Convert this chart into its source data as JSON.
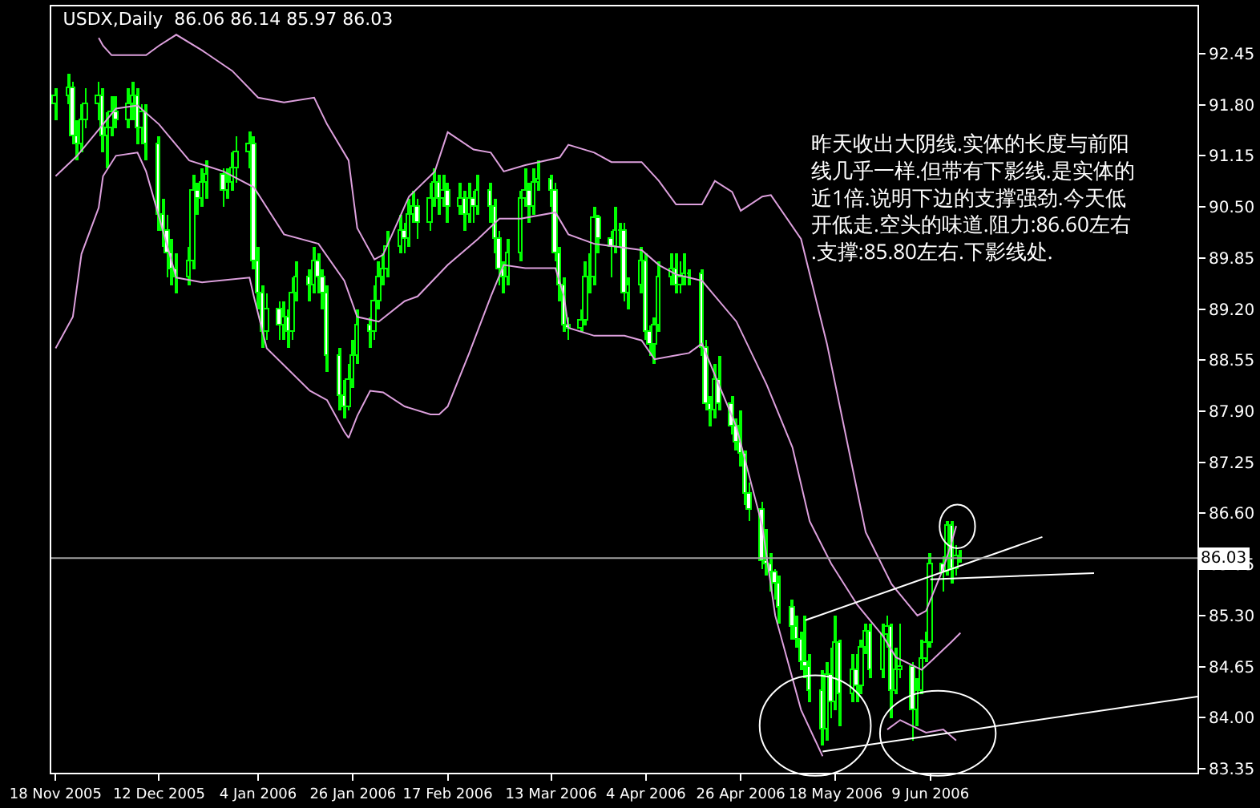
{
  "chart_data": {
    "type": "candlestick",
    "title": "USDX,Daily  86.06 86.14 85.97 86.03",
    "annotations": [
      "昨天收出大阴线.实体的长度与前阳线几乎一样.但带有下影线.是实体的近1倍.说明下边的支撑强劲.今天低开低走.空头的味道.阻力:86.60左右.支撑:85.80左右.下影线处."
    ],
    "series": [
      {
        "color": "#00ff00",
        "x": [
          "2005-11-18",
          "2005-11-21",
          "2005-11-22",
          "2005-11-23",
          "2005-11-24",
          "2005-11-25",
          "2005-11-28",
          "2005-11-29",
          "2005-11-30",
          "2005-12-01",
          "2005-12-02",
          "2005-12-05",
          "2005-12-06",
          "2005-12-07",
          "2005-12-08",
          "2005-12-09",
          "2005-12-12",
          "2005-12-13",
          "2005-12-14",
          "2005-12-15",
          "2005-12-16",
          "2005-12-19",
          "2005-12-20",
          "2005-12-21",
          "2005-12-22",
          "2005-12-23",
          "2005-12-27",
          "2005-12-28",
          "2005-12-29",
          "2005-12-30",
          "2006-01-02",
          "2006-01-03",
          "2006-01-04",
          "2006-01-05",
          "2006-01-06",
          "2006-01-09",
          "2006-01-10",
          "2006-01-11",
          "2006-01-12",
          "2006-01-13",
          "2006-01-16",
          "2006-01-17",
          "2006-01-18",
          "2006-01-19",
          "2006-01-20",
          "2006-01-23",
          "2006-01-24",
          "2006-01-25",
          "2006-01-26",
          "2006-01-27",
          "2006-01-30",
          "2006-01-31",
          "2006-02-01",
          "2006-02-02",
          "2006-02-03",
          "2006-02-06",
          "2006-02-07",
          "2006-02-08",
          "2006-02-09",
          "2006-02-10",
          "2006-02-13",
          "2006-02-14",
          "2006-02-15",
          "2006-02-16",
          "2006-02-17",
          "2006-02-20",
          "2006-02-21",
          "2006-02-22",
          "2006-02-23",
          "2006-02-24",
          "2006-02-27",
          "2006-02-28",
          "2006-03-01",
          "2006-03-02",
          "2006-03-03",
          "2006-03-06",
          "2006-03-07",
          "2006-03-08",
          "2006-03-09",
          "2006-03-10",
          "2006-03-13",
          "2006-03-14",
          "2006-03-15",
          "2006-03-16",
          "2006-03-17",
          "2006-03-20",
          "2006-03-21",
          "2006-03-22",
          "2006-03-23",
          "2006-03-24",
          "2006-03-27",
          "2006-03-28",
          "2006-03-29",
          "2006-03-30",
          "2006-03-31",
          "2006-04-03",
          "2006-04-04",
          "2006-04-05",
          "2006-04-06",
          "2006-04-07",
          "2006-04-10",
          "2006-04-11",
          "2006-04-12",
          "2006-04-13",
          "2006-04-14",
          "2006-04-17",
          "2006-04-18",
          "2006-04-19",
          "2006-04-20",
          "2006-04-21",
          "2006-04-24",
          "2006-04-25",
          "2006-04-26",
          "2006-04-27",
          "2006-04-28",
          "2006-05-01",
          "2006-05-02",
          "2006-05-03",
          "2006-05-04",
          "2006-05-05",
          "2006-05-08",
          "2006-05-09",
          "2006-05-10",
          "2006-05-11",
          "2006-05-12",
          "2006-05-15",
          "2006-05-16",
          "2006-05-17",
          "2006-05-18",
          "2006-05-19",
          "2006-05-22",
          "2006-05-23",
          "2006-05-24",
          "2006-05-25",
          "2006-05-26",
          "2006-05-29",
          "2006-05-30",
          "2006-05-31",
          "2006-06-01",
          "2006-06-02",
          "2006-06-05",
          "2006-06-06",
          "2006-06-07",
          "2006-06-08",
          "2006-06-09",
          "2006-06-12",
          "2006-06-13",
          "2006-06-14",
          "2006-06-15",
          "2006-06-16"
        ],
        "ohlc": [
          [
            91.8,
            92.0,
            91.6,
            91.9
          ],
          [
            91.9,
            92.2,
            91.8,
            92.0
          ],
          [
            92.0,
            92.1,
            91.3,
            91.4
          ],
          [
            91.4,
            91.6,
            91.1,
            91.3
          ],
          [
            91.3,
            91.8,
            91.2,
            91.6
          ],
          [
            91.6,
            92.0,
            91.5,
            91.8
          ],
          [
            91.8,
            92.1,
            91.6,
            91.9
          ],
          [
            91.9,
            92.0,
            91.2,
            91.4
          ],
          [
            91.4,
            91.7,
            91.0,
            91.5
          ],
          [
            91.5,
            91.9,
            91.4,
            91.7
          ],
          [
            91.7,
            91.9,
            91.5,
            91.6
          ],
          [
            91.6,
            92.0,
            91.5,
            91.8
          ],
          [
            91.8,
            92.1,
            91.6,
            91.9
          ],
          [
            91.9,
            92.0,
            91.3,
            91.5
          ],
          [
            91.5,
            91.8,
            91.3,
            91.7
          ],
          [
            91.7,
            91.8,
            91.1,
            91.3
          ],
          [
            91.3,
            91.4,
            90.2,
            90.4
          ],
          [
            90.4,
            90.6,
            90.0,
            90.2
          ],
          [
            90.2,
            90.4,
            89.6,
            89.9
          ],
          [
            89.9,
            90.1,
            89.5,
            89.7
          ],
          [
            89.7,
            89.9,
            89.4,
            89.6
          ],
          [
            89.6,
            90.0,
            89.5,
            89.8
          ],
          [
            89.8,
            90.9,
            89.7,
            90.7
          ],
          [
            90.7,
            90.8,
            90.4,
            90.6
          ],
          [
            90.6,
            91.0,
            90.5,
            90.8
          ],
          [
            90.8,
            91.1,
            90.6,
            90.9
          ],
          [
            90.9,
            91.0,
            90.5,
            90.7
          ],
          [
            90.7,
            91.0,
            90.6,
            90.8
          ],
          [
            90.8,
            91.2,
            90.7,
            91.0
          ],
          [
            91.0,
            91.4,
            90.8,
            91.2
          ],
          [
            91.2,
            91.45,
            91.0,
            91.3
          ],
          [
            91.3,
            91.4,
            89.7,
            89.8
          ],
          [
            89.8,
            90.0,
            89.2,
            89.4
          ],
          [
            89.4,
            89.5,
            88.7,
            88.9
          ],
          [
            88.9,
            89.4,
            88.8,
            89.2
          ],
          [
            89.2,
            89.3,
            88.8,
            89.0
          ],
          [
            89.0,
            89.3,
            88.8,
            89.1
          ],
          [
            89.1,
            89.2,
            88.7,
            88.9
          ],
          [
            88.9,
            89.6,
            88.8,
            89.4
          ],
          [
            89.4,
            89.8,
            89.3,
            89.6
          ],
          [
            89.6,
            89.7,
            89.3,
            89.5
          ],
          [
            89.5,
            90.0,
            89.4,
            89.8
          ],
          [
            89.8,
            89.9,
            89.4,
            89.6
          ],
          [
            89.6,
            89.7,
            89.2,
            89.4
          ],
          [
            89.4,
            89.5,
            88.4,
            88.6
          ],
          [
            88.6,
            88.7,
            87.9,
            88.1
          ],
          [
            88.1,
            88.3,
            87.8,
            87.95
          ],
          [
            87.95,
            88.5,
            87.9,
            88.3
          ],
          [
            88.3,
            88.8,
            88.2,
            88.6
          ],
          [
            88.6,
            89.2,
            88.5,
            89.0
          ],
          [
            89.0,
            89.1,
            88.7,
            88.9
          ],
          [
            88.9,
            89.5,
            88.8,
            89.3
          ],
          [
            89.3,
            89.8,
            89.2,
            89.6
          ],
          [
            89.6,
            89.9,
            89.5,
            89.7
          ],
          [
            89.7,
            90.2,
            89.6,
            90.0
          ],
          [
            90.0,
            90.4,
            89.9,
            90.2
          ],
          [
            90.2,
            90.3,
            89.9,
            90.1
          ],
          [
            90.1,
            90.6,
            90.0,
            90.4
          ],
          [
            90.4,
            90.7,
            90.3,
            90.5
          ],
          [
            90.5,
            90.6,
            90.1,
            90.3
          ],
          [
            90.3,
            90.8,
            90.2,
            90.6
          ],
          [
            90.6,
            91.0,
            90.5,
            90.8
          ],
          [
            90.8,
            90.9,
            90.4,
            90.6
          ],
          [
            90.6,
            90.9,
            90.5,
            90.7
          ],
          [
            90.7,
            90.8,
            90.3,
            90.5
          ],
          [
            90.5,
            90.8,
            90.4,
            90.6
          ],
          [
            90.6,
            90.7,
            90.2,
            90.4
          ],
          [
            90.4,
            90.8,
            90.3,
            90.6
          ],
          [
            90.6,
            90.7,
            90.3,
            90.5
          ],
          [
            90.5,
            90.9,
            90.4,
            90.7
          ],
          [
            90.7,
            90.8,
            90.3,
            90.5
          ],
          [
            90.5,
            90.6,
            89.9,
            90.1
          ],
          [
            90.1,
            90.2,
            89.5,
            89.7
          ],
          [
            89.7,
            89.8,
            89.4,
            89.6
          ],
          [
            89.6,
            90.1,
            89.5,
            89.9
          ],
          [
            89.9,
            90.7,
            89.8,
            90.6
          ],
          [
            90.6,
            91.0,
            90.5,
            90.7
          ],
          [
            90.7,
            90.8,
            90.3,
            90.5
          ],
          [
            90.5,
            91.0,
            90.4,
            90.8
          ],
          [
            90.8,
            91.1,
            90.7,
            90.85
          ],
          [
            90.85,
            90.9,
            90.5,
            90.7
          ],
          [
            90.7,
            90.8,
            89.8,
            89.9
          ],
          [
            89.9,
            90.0,
            89.3,
            89.5
          ],
          [
            89.5,
            89.6,
            88.9,
            89.0
          ],
          [
            89.0,
            89.1,
            88.8,
            88.95
          ],
          [
            88.95,
            89.2,
            88.9,
            89.05
          ],
          [
            89.05,
            89.8,
            89.0,
            89.6
          ],
          [
            89.6,
            89.9,
            89.4,
            89.6
          ],
          [
            89.6,
            90.5,
            89.5,
            90.35
          ],
          [
            90.35,
            90.4,
            89.9,
            90.1
          ],
          [
            90.1,
            90.2,
            89.6,
            90.0
          ],
          [
            90.0,
            90.5,
            89.9,
            90.2
          ],
          [
            90.2,
            90.3,
            90.0,
            90.2
          ],
          [
            90.2,
            90.3,
            89.3,
            89.4
          ],
          [
            89.4,
            89.6,
            89.2,
            89.5
          ],
          [
            89.5,
            90.0,
            89.4,
            89.8
          ],
          [
            89.8,
            89.9,
            88.8,
            88.9
          ],
          [
            88.9,
            89.0,
            88.6,
            88.75
          ],
          [
            88.75,
            89.1,
            88.5,
            89.0
          ],
          [
            89.0,
            89.8,
            88.9,
            89.6
          ],
          [
            89.6,
            89.9,
            89.5,
            89.7
          ],
          [
            89.7,
            89.9,
            89.4,
            89.5
          ],
          [
            89.5,
            89.8,
            89.4,
            89.6
          ],
          [
            89.6,
            89.9,
            89.5,
            89.65
          ],
          [
            89.65,
            89.7,
            89.5,
            89.65
          ],
          [
            89.65,
            89.7,
            88.6,
            88.7
          ],
          [
            88.7,
            88.8,
            87.9,
            88.0
          ],
          [
            88.0,
            88.1,
            87.7,
            87.9
          ],
          [
            87.9,
            88.5,
            87.8,
            88.3
          ],
          [
            88.3,
            88.6,
            87.9,
            88.0
          ],
          [
            88.0,
            88.1,
            87.6,
            87.7
          ],
          [
            87.7,
            87.8,
            87.4,
            87.5
          ],
          [
            87.5,
            87.9,
            87.2,
            87.35
          ],
          [
            87.35,
            87.4,
            86.7,
            86.85
          ],
          [
            86.85,
            87.0,
            86.5,
            86.65
          ],
          [
            86.65,
            86.75,
            85.9,
            86.0
          ],
          [
            86.0,
            86.4,
            85.8,
            85.95
          ],
          [
            85.95,
            86.1,
            85.6,
            85.85
          ],
          [
            85.85,
            85.9,
            85.5,
            85.7
          ],
          [
            85.7,
            85.8,
            85.2,
            85.4
          ],
          [
            85.4,
            85.5,
            85.0,
            85.15
          ],
          [
            85.15,
            85.3,
            84.9,
            85.0
          ],
          [
            85.0,
            85.1,
            84.6,
            84.7
          ],
          [
            84.7,
            85.3,
            84.5,
            84.65
          ],
          [
            84.65,
            84.8,
            84.2,
            84.35
          ],
          [
            84.35,
            84.6,
            83.65,
            83.85
          ],
          [
            83.85,
            84.7,
            83.7,
            84.55
          ],
          [
            84.55,
            84.9,
            84.0,
            84.2
          ],
          [
            84.2,
            85.3,
            84.1,
            84.95
          ],
          [
            84.95,
            85.0,
            83.9,
            84.3
          ],
          [
            84.3,
            84.8,
            84.2,
            84.6
          ],
          [
            84.6,
            84.8,
            84.2,
            84.4
          ],
          [
            84.4,
            85.0,
            84.3,
            84.9
          ],
          [
            84.9,
            85.2,
            84.8,
            85.1
          ],
          [
            85.1,
            85.2,
            84.5,
            84.6
          ],
          [
            84.6,
            85.2,
            84.5,
            85.05
          ],
          [
            85.05,
            85.3,
            84.9,
            85.15
          ],
          [
            85.15,
            85.2,
            84.0,
            84.35
          ],
          [
            84.35,
            84.9,
            84.3,
            84.6
          ],
          [
            84.6,
            85.2,
            84.5,
            84.65
          ],
          [
            84.65,
            84.7,
            83.7,
            84.1
          ],
          [
            84.1,
            84.5,
            83.9,
            84.35
          ],
          [
            84.35,
            85.0,
            84.3,
            84.75
          ],
          [
            84.75,
            85.1,
            84.7,
            84.95
          ],
          [
            84.95,
            86.1,
            84.9,
            85.95
          ],
          [
            85.95,
            86.05,
            85.6,
            85.85
          ],
          [
            85.85,
            86.5,
            85.8,
            86.45
          ],
          [
            86.45,
            86.5,
            85.7,
            85.9
          ],
          [
            85.9,
            86.2,
            85.8,
            86.06
          ],
          [
            86.06,
            86.14,
            85.97,
            86.03
          ]
        ]
      },
      {
        "type": "line",
        "color": "#dda0dd",
        "x": [
          "2005-11-28",
          "2005-11-29",
          "2005-12-01",
          "2005-12-09",
          "2005-12-12",
          "2005-12-16",
          "2005-12-22",
          "2005-12-29",
          "2006-01-04",
          "2006-01-10",
          "2006-01-17",
          "2006-01-20",
          "2006-01-25",
          "2006-01-27",
          "2006-01-31",
          "2006-02-02",
          "2006-02-08",
          "2006-02-14",
          "2006-02-17",
          "2006-02-23",
          "2006-02-27",
          "2006-03-02",
          "2006-03-07",
          "2006-03-15",
          "2006-03-17",
          "2006-03-23",
          "2006-03-27",
          "2006-04-03",
          "2006-04-07",
          "2006-04-11",
          "2006-04-17",
          "2006-04-20",
          "2006-04-24",
          "2006-04-26",
          "2006-05-01",
          "2006-05-03",
          "2006-05-10",
          "2006-05-16",
          "2006-05-25",
          "2006-05-31",
          "2006-06-06",
          "2006-06-08",
          "2006-06-12",
          "2006-06-14",
          "2006-06-15"
        ],
        "values": [
          92.65,
          92.55,
          92.43,
          92.43,
          92.55,
          92.69,
          92.49,
          92.23,
          91.89,
          91.83,
          91.89,
          91.55,
          91.09,
          90.23,
          89.83,
          89.89,
          90.63,
          90.95,
          91.45,
          91.23,
          91.19,
          90.95,
          91.03,
          91.13,
          91.29,
          91.19,
          91.07,
          91.07,
          90.83,
          90.53,
          90.53,
          90.83,
          90.69,
          90.45,
          90.63,
          90.65,
          90.09,
          88.76,
          86.36,
          85.7,
          85.3,
          85.36,
          85.9,
          86.24,
          86.44
        ]
      },
      {
        "type": "line",
        "color": "#dda0dd",
        "x": [
          "2005-11-18",
          "2005-11-23",
          "2005-11-29",
          "2005-12-02",
          "2005-12-07",
          "2005-12-12",
          "2005-12-19",
          "2005-12-27",
          "2006-01-03",
          "2006-01-10",
          "2006-01-18",
          "2006-01-24",
          "2006-01-27",
          "2006-02-01",
          "2006-02-07",
          "2006-02-10",
          "2006-02-17",
          "2006-02-24",
          "2006-03-01",
          "2006-03-06",
          "2006-03-14",
          "2006-03-17",
          "2006-03-23",
          "2006-04-03",
          "2006-04-07",
          "2006-04-11",
          "2006-04-17",
          "2006-04-25",
          "2006-05-02",
          "2006-05-08",
          "2006-05-12",
          "2006-05-17",
          "2006-05-23",
          "2006-05-29",
          "2006-06-01",
          "2006-06-07",
          "2006-06-09",
          "2006-06-14",
          "2006-06-16"
        ],
        "values": [
          90.89,
          91.15,
          91.55,
          91.75,
          91.79,
          91.55,
          91.09,
          90.95,
          90.75,
          90.15,
          90.03,
          89.56,
          89.1,
          89.04,
          89.3,
          89.36,
          89.76,
          90.09,
          90.35,
          90.35,
          90.43,
          90.15,
          90.03,
          89.95,
          89.76,
          89.64,
          89.56,
          89.04,
          88.24,
          87.44,
          86.5,
          85.96,
          85.44,
          85.04,
          84.77,
          84.61,
          84.71,
          84.97,
          85.08
        ]
      },
      {
        "type": "line",
        "color": "#dda0dd",
        "x": [
          "2005-11-18",
          "2005-11-22",
          "2005-11-24",
          "2005-11-28",
          "2005-11-29",
          "2005-12-02",
          "2005-12-07",
          "2005-12-09",
          "2005-12-16",
          "2005-12-22",
          "2006-01-02",
          "2006-01-03",
          "2006-01-06",
          "2006-01-16",
          "2006-01-20",
          "2006-01-24",
          "2006-01-25",
          "2006-01-27",
          "2006-01-30",
          "2006-02-02",
          "2006-02-07",
          "2006-02-13",
          "2006-02-15",
          "2006-02-17",
          "2006-02-22",
          "2006-02-27",
          "2006-03-02",
          "2006-03-07",
          "2006-03-14",
          "2006-03-16",
          "2006-03-17",
          "2006-03-23",
          "2006-03-30",
          "2006-04-03",
          "2006-04-06",
          "2006-04-10",
          "2006-04-14",
          "2006-04-17",
          "2006-04-20",
          "2006-04-25",
          "2006-05-01",
          "2006-05-04",
          "2006-05-10",
          "2006-05-15",
          "2006-05-18",
          "2006-05-30",
          "2006-06-02",
          "2006-06-08",
          "2006-06-12",
          "2006-06-15"
        ],
        "values": [
          88.7,
          89.1,
          89.9,
          90.49,
          90.89,
          91.15,
          91.19,
          90.95,
          89.6,
          89.54,
          89.6,
          89.36,
          88.7,
          88.16,
          88.04,
          87.64,
          87.56,
          87.84,
          88.16,
          88.14,
          87.96,
          87.86,
          87.86,
          87.96,
          88.64,
          89.36,
          89.76,
          89.72,
          89.72,
          89.36,
          88.96,
          88.86,
          88.86,
          88.8,
          88.56,
          88.6,
          88.64,
          88.76,
          88.36,
          87.7,
          86.44,
          85.3,
          84.1,
          83.51,
          null,
          83.85,
          83.97,
          83.81,
          83.85,
          83.71
        ]
      },
      {
        "type": "line",
        "color": "#ffffff",
        "x": [
          "2006-05-11",
          "2006-07-05"
        ],
        "values": [
          85.24,
          86.3
        ]
      },
      {
        "type": "line",
        "color": "#ffffff",
        "x": [
          "2006-06-09",
          "2006-07-17"
        ],
        "values": [
          85.76,
          85.84
        ]
      },
      {
        "type": "line",
        "color": "#ffffff",
        "x": [
          "2006-05-15",
          "2006-08-10"
        ],
        "values": [
          83.57,
          84.27
        ]
      }
    ],
    "xlim": [
      "2005-11-17",
      "2006-08-10"
    ],
    "xticks": [
      {
        "value": "2005-11-18",
        "label": "18 Nov 2005"
      },
      {
        "value": "2005-12-12",
        "label": "12 Dec 2005"
      },
      {
        "value": "2006-01-04",
        "label": "4 Jan 2006"
      },
      {
        "value": "2006-01-26",
        "label": "26 Jan 2006"
      },
      {
        "value": "2006-02-17",
        "label": "17 Feb 2006"
      },
      {
        "value": "2006-03-13",
        "label": "13 Mar 2006"
      },
      {
        "value": "2006-04-04",
        "label": "4 Apr 2006"
      },
      {
        "value": "2006-04-26",
        "label": "26 Apr 2006"
      },
      {
        "value": "2006-05-18",
        "label": "18 May 2006"
      },
      {
        "value": "2006-06-09",
        "label": "9 Jun 2006"
      }
    ],
    "ylim": [
      83.3,
      93.05
    ],
    "yticks": [
      92.45,
      {
        "value": 91.8,
        "label": "91.80"
      },
      91.15,
      {
        "value": 90.5,
        "label": "90.50"
      },
      89.85,
      {
        "value": 89.2,
        "label": "89.20"
      },
      88.55,
      {
        "value": 87.9,
        "label": "87.90"
      },
      87.25,
      {
        "value": 86.6,
        "label": "86.60"
      },
      85.95,
      {
        "value": 85.3,
        "label": "85.30"
      },
      84.65,
      {
        "value": 84.0,
        "label": "84.00"
      },
      83.35
    ],
    "ref_lines": [
      {
        "axis": "y",
        "value": 86.03,
        "label": "86.03",
        "color": "#a0a0a0"
      }
    ]
  }
}
